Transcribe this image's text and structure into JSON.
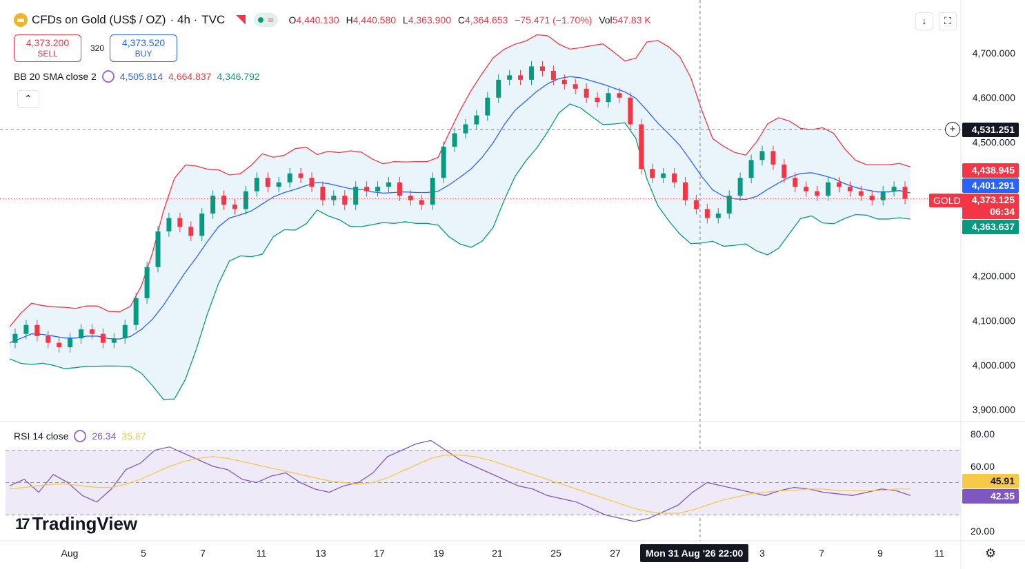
{
  "header": {
    "symbol": "CFDs on Gold (US$ / OZ)",
    "interval": "· 4h ·",
    "source": "TVC",
    "ohlc": {
      "o_label": "O",
      "o": "4,440.130",
      "h_label": "H",
      "h": "4,440.580",
      "l_label": "L",
      "l": "4,363.900",
      "c_label": "C",
      "c": "4,364.653",
      "change": "−75.471 (−1.70%)",
      "vol_label": "Vol",
      "vol": "547.83 K"
    },
    "download_icon": "↓",
    "fullscreen_icon": "⛶"
  },
  "trade": {
    "sell_price": "4,373.200",
    "sell_label": "SELL",
    "spread": "320",
    "buy_price": "4,373.520",
    "buy_label": "BUY"
  },
  "bb": {
    "name": "BB 20 SMA close 2",
    "basis": "4,505.814",
    "upper": "4,664.837",
    "lower": "4,346.792"
  },
  "rsi": {
    "name": "RSI 14 close",
    "value": "26.34",
    "ma": "35.87"
  },
  "price_axis_labels": {
    "crosshair": "4,531.251",
    "bb_upper": "4,438.945",
    "bb_basis": "4,401.291",
    "last": "4,373.125",
    "countdown": "06:34",
    "bb_lower": "4,363.637",
    "ticker": "GOLD",
    "rsi_last": "42.35",
    "rsi_ma": "45.91"
  },
  "crosshair_time": "Mon 31 Aug '26   22:00",
  "logo": "TradingView",
  "colors": {
    "up": "#089981",
    "down": "#f23645",
    "bb_basis": "#2962ff",
    "bb_upper": "#f23645",
    "bb_lower": "#089981",
    "bb_fill": "#eaf4fb",
    "rsi": "#7e57c2",
    "rsi_ma": "#f7c948",
    "rsi_band": "#efeaf8"
  },
  "chart_data": [
    {
      "type": "candlestick",
      "title": "CFDs on Gold (US$ / OZ) · 4h · TVC",
      "y_ticks": [
        4700,
        4600,
        4500,
        4100,
        4000,
        3900
      ],
      "y_tick_labels": [
        "4,700.000",
        "4,600.000",
        "4,500.000",
        "4,100.000",
        "4,000.000",
        "3,900.000"
      ],
      "y_extra_ticks": [
        4200
      ],
      "y_extra_labels": [
        "4,200.000"
      ],
      "x_tick_labels": [
        "Aug",
        "5",
        "7",
        "11",
        "13",
        "17",
        "19",
        "21",
        "25",
        "27",
        "3",
        "7",
        "9",
        "11"
      ],
      "x_ticks_dates": [
        "2026-08-01",
        "2026-08-05",
        "2026-08-07",
        "2026-08-11",
        "2026-08-13",
        "2026-08-17",
        "2026-08-19",
        "2026-08-21",
        "2026-08-25",
        "2026-08-27",
        "2026-09-03",
        "2026-09-07",
        "2026-09-09",
        "2026-09-11"
      ],
      "close_path": [
        4050,
        4070,
        4090,
        4065,
        4050,
        4040,
        4060,
        4080,
        4070,
        4050,
        4060,
        4090,
        4150,
        4220,
        4300,
        4330,
        4310,
        4290,
        4340,
        4380,
        4360,
        4350,
        4390,
        4420,
        4400,
        4410,
        4430,
        4420,
        4400,
        4370,
        4380,
        4360,
        4400,
        4390,
        4400,
        4410,
        4380,
        4370,
        4360,
        4420,
        4490,
        4520,
        4540,
        4560,
        4600,
        4640,
        4650,
        4640,
        4670,
        4660,
        4640,
        4630,
        4620,
        4600,
        4590,
        4610,
        4600,
        4540,
        4440,
        4420,
        4430,
        4410,
        4370,
        4350,
        4330,
        4340,
        4380,
        4420,
        4460,
        4480,
        4450,
        4420,
        4400,
        4390,
        4380,
        4410,
        4400,
        4390,
        4380,
        4370,
        4390,
        4400,
        4373
      ],
      "bb_upper_value": 4664.837,
      "bb_basis_value": 4505.814,
      "bb_lower_value": 4346.792,
      "last_price": 4373.125
    },
    {
      "type": "line",
      "title": "RSI 14 close",
      "y_ticks": [
        80,
        60,
        20
      ],
      "y_tick_labels": [
        "80.00",
        "60.00",
        "20.00"
      ],
      "band": [
        30,
        70
      ],
      "series": [
        {
          "name": "RSI",
          "values": [
            48,
            52,
            44,
            55,
            50,
            42,
            38,
            46,
            58,
            62,
            70,
            72,
            68,
            64,
            60,
            58,
            52,
            50,
            54,
            56,
            50,
            46,
            44,
            48,
            50,
            56,
            66,
            70,
            74,
            76,
            70,
            64,
            60,
            56,
            52,
            48,
            46,
            42,
            40,
            38,
            34,
            30,
            28,
            26,
            28,
            32,
            36,
            44,
            50,
            48,
            46,
            44,
            42,
            45,
            47,
            46,
            44,
            43,
            42,
            44,
            46,
            45,
            42
          ]
        },
        {
          "name": "RSI-based MA",
          "values": [
            46,
            47,
            48,
            49,
            49,
            48,
            47,
            47,
            49,
            52,
            56,
            60,
            63,
            65,
            66,
            65,
            63,
            61,
            59,
            57,
            55,
            53,
            51,
            50,
            49,
            50,
            53,
            57,
            61,
            65,
            67,
            67,
            66,
            64,
            61,
            58,
            55,
            52,
            49,
            46,
            43,
            40,
            37,
            34,
            32,
            31,
            31,
            33,
            36,
            39,
            41,
            43,
            44,
            45,
            45,
            46,
            46,
            45,
            45,
            45,
            45,
            46,
            46
          ]
        }
      ],
      "last_rsi": 42.35,
      "last_ma": 45.91
    }
  ]
}
